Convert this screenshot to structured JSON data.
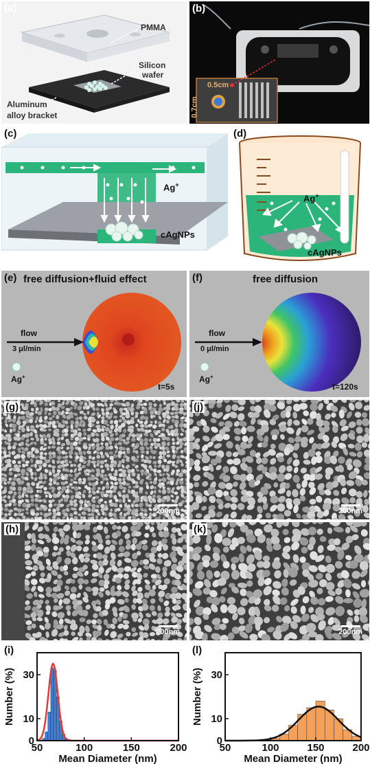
{
  "panels": {
    "a": {
      "label": "(a)",
      "pmma": "PMMA",
      "silicon_1": "Silicon",
      "silicon_2": "wafer",
      "bracket_1": "Aluminum",
      "bracket_2": "alloy bracket"
    },
    "b": {
      "label": "(b)",
      "w": "0.5cm",
      "h": "0.7cm"
    },
    "c": {
      "label": "(c)",
      "ion": "Ag",
      "ion_sup": "+",
      "np": "cAgNPs"
    },
    "d": {
      "label": "(d)",
      "ion": "Ag",
      "ion_sup": "+",
      "np": "cAgNPs"
    },
    "e": {
      "label": "(e)",
      "title": "free diffusion+fluid effect",
      "flow": "flow",
      "rate": "3 μl/min",
      "ion": "Ag",
      "ion_sup": "+",
      "time": "t=5s"
    },
    "f": {
      "label": "(f)",
      "title": "free diffusion",
      "flow": "flow",
      "rate": "0 μl/min",
      "ion": "Ag",
      "ion_sup": "+",
      "time": "t=120s"
    },
    "g": {
      "label": "(g)",
      "scale": "200nm"
    },
    "j": {
      "label": "(j)",
      "scale": "200nm"
    },
    "h": {
      "label": "(h)",
      "scale": "200nm"
    },
    "k": {
      "label": "(k)",
      "scale": "200nm"
    },
    "i": {
      "label": "(i)"
    },
    "l": {
      "label": "(l)"
    }
  },
  "chart_data": [
    {
      "id": "i",
      "type": "bar",
      "xlabel": "Mean Diameter (nm)",
      "ylabel": "Number (%)",
      "xlim": [
        50,
        200
      ],
      "ylim": [
        0,
        40
      ],
      "xticks": [
        50,
        100,
        150,
        200
      ],
      "yticks": [
        0,
        10,
        30
      ],
      "bar_color": "#3d7fd9",
      "fit_color": "#e23a3a",
      "bin_width": 3,
      "bins": [
        57,
        60,
        63,
        66,
        69,
        72,
        75,
        78,
        81,
        84
      ],
      "values": [
        1,
        4,
        13,
        33,
        32,
        20,
        9,
        3,
        1,
        0.5
      ],
      "fit": {
        "mean": 67,
        "sigma": 5,
        "peak": 35
      }
    },
    {
      "id": "l",
      "type": "bar",
      "xlabel": "Mean Diameter (nm)",
      "ylabel": "Number (%)",
      "xlim": [
        50,
        200
      ],
      "ylim": [
        0,
        40
      ],
      "xticks": [
        50,
        100,
        150,
        200
      ],
      "yticks": [
        0,
        10,
        30
      ],
      "bar_color": "#f2a05a",
      "fit_color": "#111111",
      "bin_width": 10,
      "bins": [
        105,
        115,
        125,
        135,
        145,
        155,
        165,
        175,
        185,
        195
      ],
      "values": [
        1,
        3,
        7,
        12,
        15,
        18,
        14,
        10,
        5,
        2
      ],
      "fit": {
        "mean": 153,
        "sigma": 22,
        "peak": 15.5
      }
    }
  ]
}
